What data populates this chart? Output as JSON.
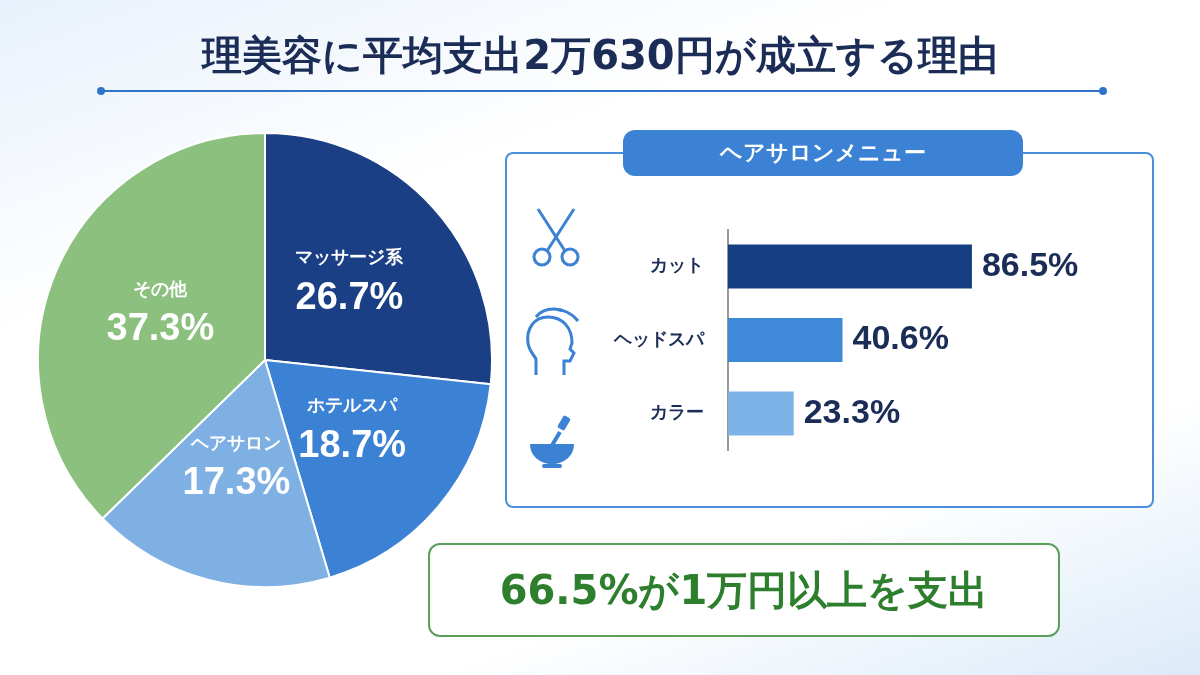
{
  "chart_data": [
    {
      "type": "pie",
      "title": "理美容に平均支出2万630円が成立する理由",
      "categories": [
        "マッサージ系",
        "ホテルスパ",
        "ヘアサロン",
        "その他"
      ],
      "values": [
        26.7,
        18.7,
        17.3,
        37.3
      ],
      "colors": [
        "#1a3f85",
        "#3b82d4",
        "#7fb0e4",
        "#8cc07f"
      ],
      "value_labels": [
        "26.7%",
        "18.7%",
        "17.3%",
        "37.3%"
      ]
    },
    {
      "type": "bar",
      "orientation": "horizontal",
      "title": "ヘアサロンメニュー",
      "categories": [
        "カット",
        "ヘッドスパ",
        "カラー"
      ],
      "values": [
        86.5,
        40.6,
        23.3
      ],
      "colors": [
        "#163e82",
        "#3f8ad8",
        "#7eb3e8"
      ],
      "value_labels": [
        "86.5%",
        "40.6%",
        "23.3%"
      ],
      "tick_labels": "y",
      "annotations": [
        "66.5%が1万円以上を支出"
      ]
    }
  ]
}
